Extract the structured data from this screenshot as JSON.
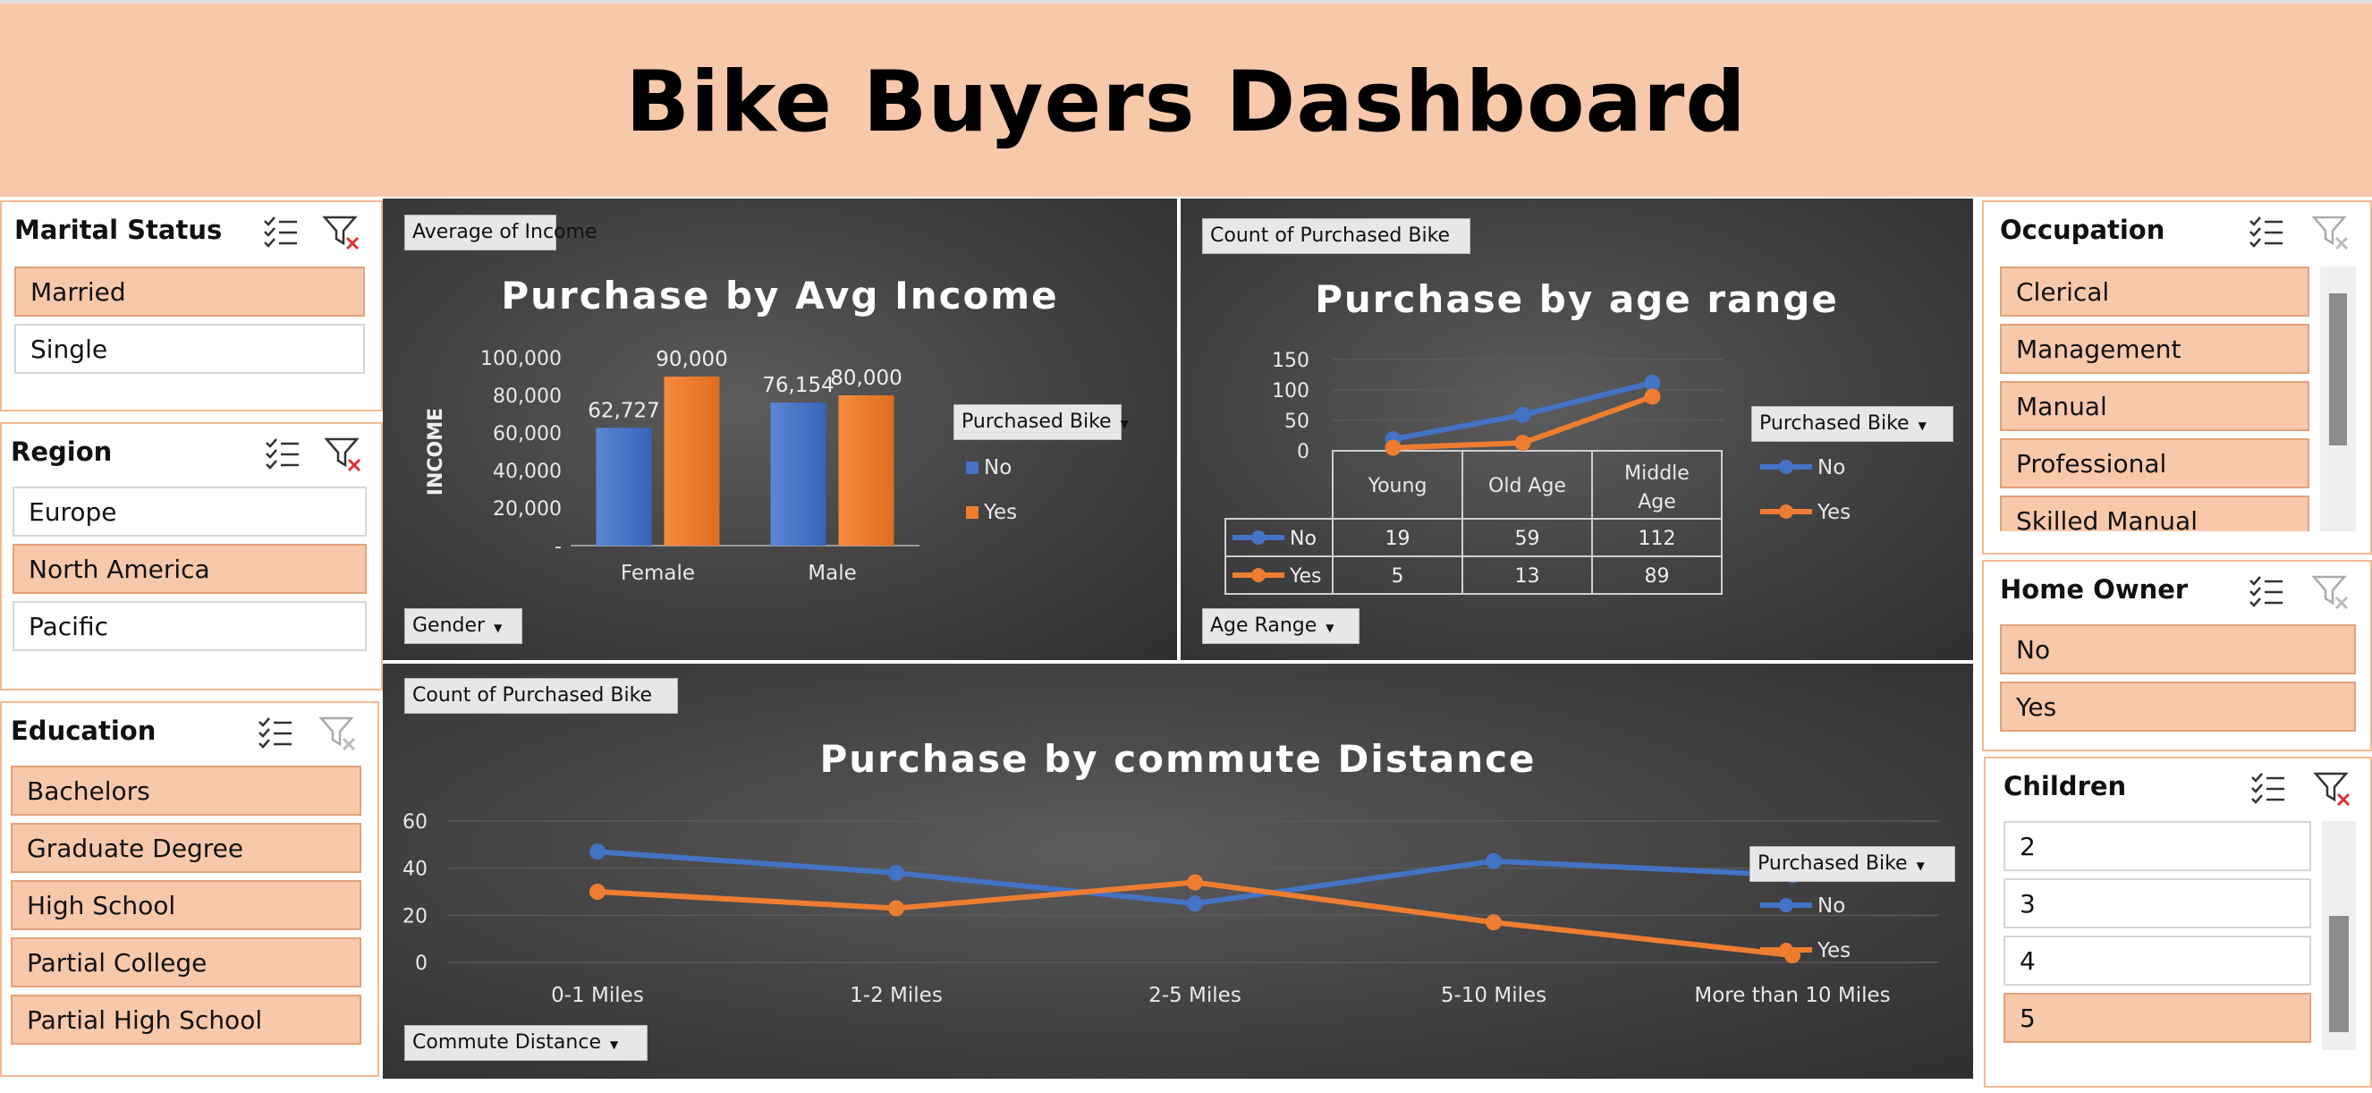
{
  "header": {
    "title": "Bike Buyers Dashboard"
  },
  "colors": {
    "no": "#4472c4",
    "yes": "#ed7d31",
    "accent": "#f8c8aa"
  },
  "slicers": {
    "marital": {
      "title": "Marital Status",
      "items": [
        "Married",
        "Single"
      ]
    },
    "region": {
      "title": "Region",
      "items": [
        "Europe",
        "North America",
        "Pacific"
      ]
    },
    "education": {
      "title": "Education",
      "items": [
        "Bachelors",
        "Graduate Degree",
        "High School",
        "Partial College",
        "Partial High School"
      ]
    },
    "occupation": {
      "title": "Occupation",
      "items": [
        "Clerical",
        "Management",
        "Manual",
        "Professional",
        "Skilled Manual"
      ]
    },
    "home_owner": {
      "title": "Home Owner",
      "items": [
        "No",
        "Yes"
      ]
    },
    "children": {
      "title": "Children",
      "items": [
        "2",
        "3",
        "4",
        "5"
      ]
    }
  },
  "charts": {
    "income": {
      "value_button": "Average of Income",
      "axis_button": "Gender",
      "legend_button": "Purchased Bike",
      "legend": [
        "No",
        "Yes"
      ]
    },
    "age": {
      "value_button": "Count of Purchased Bike",
      "axis_button": "Age Range",
      "legend_button": "Purchased Bike",
      "legend": [
        "No",
        "Yes"
      ]
    },
    "commute": {
      "value_button": "Count of Purchased Bike",
      "axis_button": "Commute Distance",
      "legend_button": "Purchased Bike",
      "legend": [
        "No",
        "Yes"
      ]
    }
  },
  "chart_data": [
    {
      "type": "bar",
      "title": "Purchase by Avg Income",
      "ylabel": "INCOME",
      "categories": [
        "Female",
        "Male"
      ],
      "series": [
        {
          "name": "No",
          "values": [
            62727,
            76154
          ],
          "labels": [
            "62,727",
            "76,154"
          ]
        },
        {
          "name": "Yes",
          "values": [
            90000,
            80000
          ],
          "labels": [
            "90,000",
            "80,000"
          ]
        }
      ],
      "ylim": [
        0,
        100000
      ],
      "yticks": [
        "-",
        "20,000",
        "40,000",
        "60,000",
        "80,000",
        "100,000"
      ],
      "legend": "right",
      "grid": false
    },
    {
      "type": "line",
      "title": "Purchase by age range",
      "categories": [
        "Young",
        "Old Age",
        "Middle Age"
      ],
      "series": [
        {
          "name": "No",
          "values": [
            19,
            59,
            112
          ]
        },
        {
          "name": "Yes",
          "values": [
            5,
            13,
            89
          ]
        }
      ],
      "ylim": [
        0,
        150
      ],
      "yticks": [
        "0",
        "50",
        "100",
        "150"
      ],
      "data_table": true,
      "legend": "right",
      "grid": true
    },
    {
      "type": "line",
      "title": "Purchase by commute Distance",
      "categories": [
        "0-1 Miles",
        "1-2 Miles",
        "2-5 Miles",
        "5-10 Miles",
        "More than 10 Miles"
      ],
      "series": [
        {
          "name": "No",
          "values": [
            47,
            38,
            25,
            43,
            37
          ]
        },
        {
          "name": "Yes",
          "values": [
            30,
            23,
            34,
            17,
            3
          ]
        }
      ],
      "ylim": [
        0,
        60
      ],
      "yticks": [
        "0",
        "20",
        "40",
        "60"
      ],
      "legend": "right",
      "grid": true
    }
  ]
}
